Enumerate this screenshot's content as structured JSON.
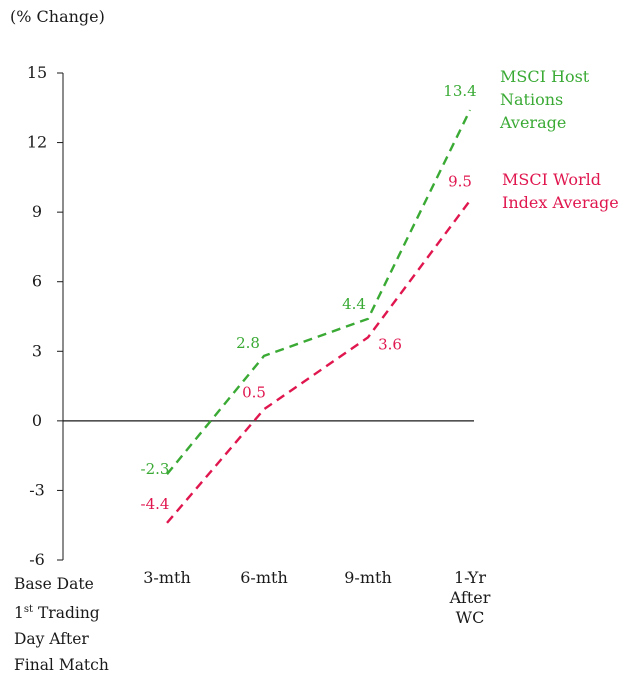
{
  "unit_label": "(% Change)",
  "base_label": {
    "line1": "Base Date",
    "line2_num": "1",
    "line2_sup": "st",
    "line2_rest": " Trading",
    "line3": "Day After",
    "line4": "Final Match"
  },
  "chart_data": {
    "type": "line",
    "title": "",
    "xlabel": "",
    "ylabel": "(% Change)",
    "ylim": [
      -6,
      15
    ],
    "yticks": [
      15,
      12,
      9,
      6,
      3,
      0,
      -3,
      -6
    ],
    "categories": [
      [
        "3-mth"
      ],
      [
        "6-mth"
      ],
      [
        "9-mth"
      ],
      [
        "1-Yr",
        "After",
        "WC"
      ]
    ],
    "grid": false,
    "legend_placement": "right",
    "series": [
      {
        "name": "MSCI Host Nations Average",
        "legend_lines": [
          "MSCI Host",
          "Nations",
          "Average"
        ],
        "color": "#3aaa35",
        "style": "dashed",
        "values": [
          -2.3,
          2.8,
          4.4,
          13.4
        ],
        "labels": [
          "-2.3",
          "2.8",
          "4.4",
          "13.4"
        ]
      },
      {
        "name": "MSCI World Index Average",
        "legend_lines": [
          "MSCI World",
          "Index Average"
        ],
        "color": "#e0164f",
        "style": "dashed",
        "values": [
          -4.4,
          0.5,
          3.6,
          9.5
        ],
        "labels": [
          "-4.4",
          "0.5",
          "3.6",
          "9.5"
        ]
      }
    ]
  }
}
